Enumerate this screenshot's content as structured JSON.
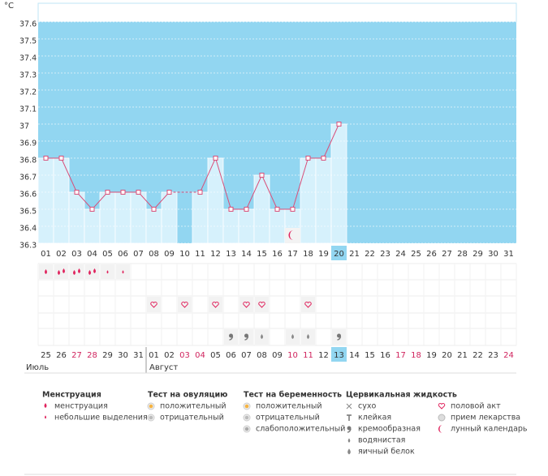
{
  "chart_data": {
    "type": "line",
    "unit": "°C",
    "categories": [
      "01",
      "02",
      "03",
      "04",
      "05",
      "06",
      "07",
      "08",
      "09",
      "10",
      "11",
      "12",
      "13",
      "14",
      "15",
      "16",
      "17",
      "18",
      "19",
      "20",
      "21",
      "22",
      "23",
      "24",
      "25",
      "26",
      "27",
      "28",
      "29",
      "30",
      "31"
    ],
    "values": [
      36.8,
      36.8,
      36.6,
      36.5,
      36.6,
      36.6,
      36.6,
      36.5,
      36.6,
      null,
      36.6,
      36.8,
      36.5,
      36.5,
      36.7,
      36.5,
      36.5,
      36.8,
      36.8,
      37,
      null,
      null,
      null,
      null,
      null,
      null,
      null,
      null,
      null,
      null,
      null
    ],
    "color": "#d94f79",
    "ylim": [
      36.3,
      37.6
    ],
    "yticks": [
      36.3,
      36.4,
      36.5,
      36.6,
      36.7,
      36.8,
      36.9,
      37,
      37.1,
      37.2,
      37.3,
      37.4,
      37.5,
      37.6
    ],
    "grid": true
  },
  "cycle_days": [
    "25",
    "26",
    "27",
    "28",
    "29",
    "30",
    "31",
    "01",
    "02",
    "03",
    "04",
    "05",
    "06",
    "07",
    "08",
    "09",
    "10",
    "11",
    "12",
    "13",
    "14",
    "15",
    "16",
    "17",
    "18",
    "19",
    "20",
    "21",
    "22",
    "23",
    "24"
  ],
  "months": [
    "Июль",
    "Август"
  ],
  "legend": [
    {
      "title": "Менструация",
      "items": [
        "менструация",
        "небольшие выделения"
      ]
    },
    {
      "title": "Тест на овуляцию",
      "items": [
        "положительный",
        "отрицательный"
      ]
    },
    {
      "title": "Тест на беременность",
      "items": [
        "положительный",
        "отрицательный",
        "слабоположительный"
      ]
    },
    {
      "title": "Цервикальная жидкость",
      "items": [
        "сухо",
        "клейкая",
        "кремообразная",
        "водянистая",
        "яичный белок"
      ]
    },
    {
      "items": [
        "половой акт",
        "прием лекарства",
        "лунный календарь"
      ]
    }
  ]
}
